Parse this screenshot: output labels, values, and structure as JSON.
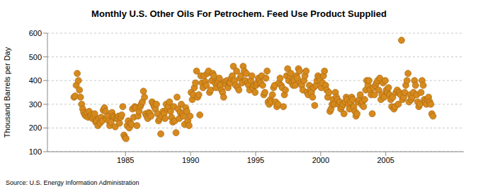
{
  "chart_data": {
    "type": "scatter",
    "title": "Monthly U.S. Other Oils For Petrochem. Feed Use Product Supplied",
    "y_label": "Thousand Barrels per Day",
    "source": "Source: U.S. Energy Information Administration",
    "color": "#d68a1d",
    "marker": "circle",
    "grid": true,
    "xlim": [
      1979,
      2011
    ],
    "xticks": [
      1985,
      1990,
      1995,
      2000,
      2005
    ],
    "ylim": [
      100,
      600
    ],
    "yticks": [
      100,
      200,
      300,
      400,
      500,
      600
    ],
    "x": [
      1981.04,
      1981.13,
      1981.21,
      1981.29,
      1981.38,
      1981.46,
      1981.54,
      1981.63,
      1981.71,
      1981.79,
      1981.88,
      1981.96,
      1982.04,
      1982.13,
      1982.21,
      1982.29,
      1982.38,
      1982.46,
      1982.54,
      1982.63,
      1982.71,
      1982.79,
      1982.88,
      1982.96,
      1983.04,
      1983.13,
      1983.21,
      1983.29,
      1983.38,
      1983.46,
      1983.54,
      1983.63,
      1983.71,
      1983.79,
      1983.88,
      1983.96,
      1984.04,
      1984.13,
      1984.21,
      1984.29,
      1984.38,
      1984.46,
      1984.54,
      1984.63,
      1984.71,
      1984.79,
      1984.88,
      1984.96,
      1985.04,
      1985.13,
      1985.21,
      1985.29,
      1985.38,
      1985.46,
      1985.54,
      1985.63,
      1985.71,
      1985.79,
      1985.88,
      1985.96,
      1986.04,
      1986.13,
      1986.21,
      1986.29,
      1986.38,
      1986.46,
      1986.54,
      1986.63,
      1986.71,
      1986.79,
      1986.88,
      1986.96,
      1987.04,
      1987.13,
      1987.21,
      1987.29,
      1987.38,
      1987.46,
      1987.54,
      1987.63,
      1987.71,
      1987.79,
      1987.88,
      1987.96,
      1988.04,
      1988.13,
      1988.21,
      1988.29,
      1988.38,
      1988.46,
      1988.54,
      1988.63,
      1988.71,
      1988.79,
      1988.88,
      1988.96,
      1989.04,
      1989.13,
      1989.21,
      1989.29,
      1989.38,
      1989.46,
      1989.54,
      1989.63,
      1989.71,
      1989.79,
      1989.88,
      1989.96,
      1990.04,
      1990.13,
      1990.21,
      1990.29,
      1990.38,
      1990.46,
      1990.54,
      1990.63,
      1990.71,
      1990.79,
      1990.88,
      1990.96,
      1991.04,
      1991.13,
      1991.21,
      1991.29,
      1991.38,
      1991.46,
      1991.54,
      1991.63,
      1991.71,
      1991.79,
      1991.88,
      1991.96,
      1992.04,
      1992.13,
      1992.21,
      1992.29,
      1992.38,
      1992.46,
      1992.54,
      1992.63,
      1992.71,
      1992.79,
      1992.88,
      1992.96,
      1993.04,
      1993.13,
      1993.21,
      1993.29,
      1993.38,
      1993.46,
      1993.54,
      1993.63,
      1993.71,
      1993.79,
      1993.88,
      1993.96,
      1994.04,
      1994.13,
      1994.21,
      1994.29,
      1994.38,
      1994.46,
      1994.54,
      1994.63,
      1994.71,
      1994.79,
      1994.88,
      1994.96,
      1995.04,
      1995.13,
      1995.21,
      1995.29,
      1995.38,
      1995.46,
      1995.54,
      1995.63,
      1995.71,
      1995.79,
      1995.88,
      1995.96,
      1996.04,
      1996.13,
      1996.21,
      1996.29,
      1996.38,
      1996.46,
      1996.54,
      1996.63,
      1996.71,
      1996.79,
      1996.88,
      1996.96,
      1997.04,
      1997.13,
      1997.21,
      1997.29,
      1997.38,
      1997.46,
      1997.54,
      1997.63,
      1997.71,
      1997.79,
      1997.88,
      1997.96,
      1998.04,
      1998.13,
      1998.21,
      1998.29,
      1998.38,
      1998.46,
      1998.54,
      1998.63,
      1998.71,
      1998.79,
      1998.88,
      1998.96,
      1999.04,
      1999.13,
      1999.21,
      1999.29,
      1999.38,
      1999.46,
      1999.54,
      1999.63,
      1999.71,
      1999.79,
      1999.88,
      1999.96,
      2000.04,
      2000.13,
      2000.21,
      2000.29,
      2000.38,
      2000.46,
      2000.54,
      2000.63,
      2000.71,
      2000.79,
      2000.88,
      2000.96,
      2001.04,
      2001.13,
      2001.21,
      2001.29,
      2001.38,
      2001.46,
      2001.54,
      2001.63,
      2001.71,
      2001.79,
      2001.88,
      2001.96,
      2002.04,
      2002.13,
      2002.21,
      2002.29,
      2002.38,
      2002.46,
      2002.54,
      2002.63,
      2002.71,
      2002.79,
      2002.88,
      2002.96,
      2003.04,
      2003.13,
      2003.21,
      2003.29,
      2003.38,
      2003.46,
      2003.54,
      2003.63,
      2003.71,
      2003.79,
      2003.88,
      2003.96,
      2004.04,
      2004.13,
      2004.21,
      2004.29,
      2004.38,
      2004.46,
      2004.54,
      2004.63,
      2004.71,
      2004.79,
      2004.88,
      2004.96,
      2005.04,
      2005.13,
      2005.21,
      2005.29,
      2005.38,
      2005.46,
      2005.54,
      2005.63,
      2005.71,
      2005.79,
      2005.88,
      2005.96,
      2006.04,
      2006.13,
      2006.21,
      2006.29,
      2006.38,
      2006.46,
      2006.54,
      2006.63,
      2006.71,
      2006.79,
      2006.88,
      2006.96,
      2007.04,
      2007.13,
      2007.21,
      2007.29,
      2007.38,
      2007.46,
      2007.54,
      2007.63,
      2007.71,
      2007.79,
      2007.88,
      2007.96,
      2008.04,
      2008.13,
      2008.21,
      2008.29,
      2008.38,
      2008.46,
      2008.54,
      2008.63
    ],
    "values": [
      330,
      335,
      380,
      430,
      400,
      360,
      330,
      300,
      280,
      265,
      255,
      250,
      265,
      245,
      270,
      250,
      255,
      240,
      250,
      260,
      225,
      230,
      210,
      240,
      220,
      245,
      230,
      275,
      285,
      270,
      240,
      250,
      230,
      210,
      225,
      265,
      250,
      245,
      205,
      240,
      240,
      250,
      220,
      245,
      255,
      290,
      170,
      160,
      155,
      210,
      230,
      200,
      220,
      215,
      280,
      245,
      290,
      285,
      210,
      250,
      270,
      290,
      300,
      310,
      355,
      330,
      260,
      250,
      240,
      265,
      260,
      250,
      310,
      300,
      290,
      280,
      300,
      260,
      230,
      240,
      175,
      250,
      270,
      260,
      240,
      300,
      280,
      290,
      310,
      270,
      245,
      225,
      290,
      230,
      180,
      330,
      280,
      240,
      265,
      300,
      260,
      250,
      215,
      285,
      270,
      230,
      210,
      250,
      350,
      320,
      340,
      370,
      390,
      440,
      330,
      340,
      255,
      420,
      390,
      370,
      420,
      395,
      380,
      430,
      440,
      350,
      360,
      400,
      430,
      420,
      390,
      370,
      390,
      400,
      410,
      380,
      360,
      350,
      330,
      395,
      385,
      400,
      370,
      390,
      390,
      410,
      420,
      460,
      400,
      380,
      440,
      370,
      360,
      410,
      420,
      390,
      460,
      440,
      400,
      430,
      390,
      380,
      360,
      400,
      420,
      370,
      380,
      350,
      380,
      390,
      410,
      400,
      390,
      420,
      380,
      340,
      350,
      410,
      440,
      310,
      300,
      320,
      310,
      340,
      370,
      380,
      310,
      290,
      300,
      390,
      410,
      380,
      370,
      290,
      340,
      360,
      420,
      450,
      400,
      420,
      430,
      390,
      380,
      400,
      380,
      420,
      410,
      450,
      440,
      390,
      380,
      360,
      400,
      420,
      440,
      350,
      340,
      380,
      360,
      350,
      330,
      370,
      295,
      380,
      400,
      420,
      410,
      400,
      370,
      390,
      420,
      440,
      380,
      360,
      330,
      350,
      270,
      280,
      300,
      320,
      300,
      350,
      330,
      320,
      300,
      310,
      280,
      290,
      300,
      260,
      310,
      330,
      320,
      300,
      280,
      310,
      330,
      320,
      290,
      270,
      250,
      260,
      310,
      320,
      340,
      300,
      310,
      290,
      320,
      360,
      400,
      380,
      400,
      360,
      340,
      260,
      370,
      340,
      380,
      390,
      400,
      360,
      410,
      320,
      340,
      390,
      330,
      400,
      360,
      350,
      370,
      340,
      320,
      290,
      330,
      280,
      290,
      350,
      360,
      300,
      350,
      340,
      570,
      320,
      330,
      350,
      380,
      400,
      430,
      310,
      340,
      320,
      330,
      350,
      400,
      380,
      340,
      310,
      290,
      300,
      350,
      400,
      380,
      320,
      310,
      300,
      320,
      330,
      310,
      300,
      260,
      250
    ]
  }
}
